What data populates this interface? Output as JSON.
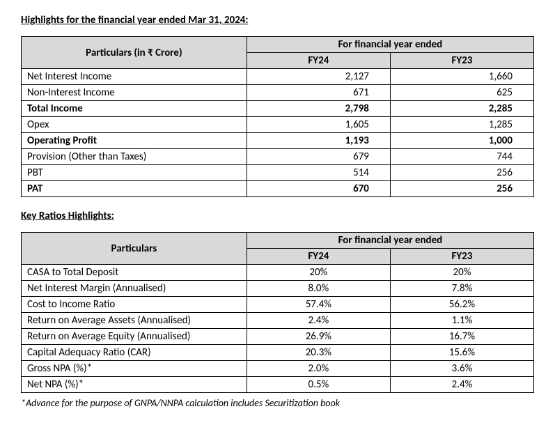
{
  "section1": {
    "title": "Highlights for the financial year ended Mar 31, 2024:",
    "header_particulars": "Particulars (in ₹ Crore)",
    "header_period": "For financial year ended",
    "header_fy24": "FY24",
    "header_fy23": "FY23",
    "rows": [
      {
        "label": "Net Interest Income",
        "fy24": "2,127",
        "fy23": "1,660",
        "bold": false
      },
      {
        "label": "Non-Interest Income",
        "fy24": "671",
        "fy23": "625",
        "bold": false
      },
      {
        "label": "Total Income",
        "fy24": "2,798",
        "fy23": "2,285",
        "bold": true
      },
      {
        "label": "Opex",
        "fy24": "1,605",
        "fy23": "1,285",
        "bold": false
      },
      {
        "label": "Operating Profit",
        "fy24": "1,193",
        "fy23": "1,000",
        "bold": true
      },
      {
        "label": "Provision (Other than Taxes)",
        "fy24": "679",
        "fy23": "744",
        "bold": false
      },
      {
        "label": "PBT",
        "fy24": "514",
        "fy23": "256",
        "bold": false
      },
      {
        "label": "PAT",
        "fy24": "670",
        "fy23": "256",
        "bold": true
      }
    ]
  },
  "section2": {
    "title": "Key Ratios Highlights:",
    "header_particulars": "Particulars",
    "header_period": "For financial year ended",
    "header_fy24": "FY24",
    "header_fy23": "FY23",
    "rows": [
      {
        "label": "CASA to Total Deposit",
        "fy24": "20%",
        "fy23": "20%"
      },
      {
        "label": "Net Interest Margin (Annualised)",
        "fy24": "8.0%",
        "fy23": "7.8%"
      },
      {
        "label": "Cost to Income Ratio",
        "fy24": "57.4%",
        "fy23": "56.2%"
      },
      {
        "label": "Return on Average Assets (Annualised)",
        "fy24": "2.4%",
        "fy23": "1.1%"
      },
      {
        "label": "Return on Average Equity (Annualised)",
        "fy24": "26.9%",
        "fy23": "16.7%"
      },
      {
        "label": "Capital Adequacy Ratio (CAR)",
        "fy24": "20.3%",
        "fy23": "15.6%"
      },
      {
        "label": "Gross NPA (%)*",
        "fy24": "2.0%",
        "fy23": "3.6%"
      },
      {
        "label": "Net NPA (%)*",
        "fy24": "0.5%",
        "fy23": "2.4%"
      }
    ],
    "footnote": "*Advance for the purpose of GNPA/NNPA calculation includes Securitization book"
  }
}
